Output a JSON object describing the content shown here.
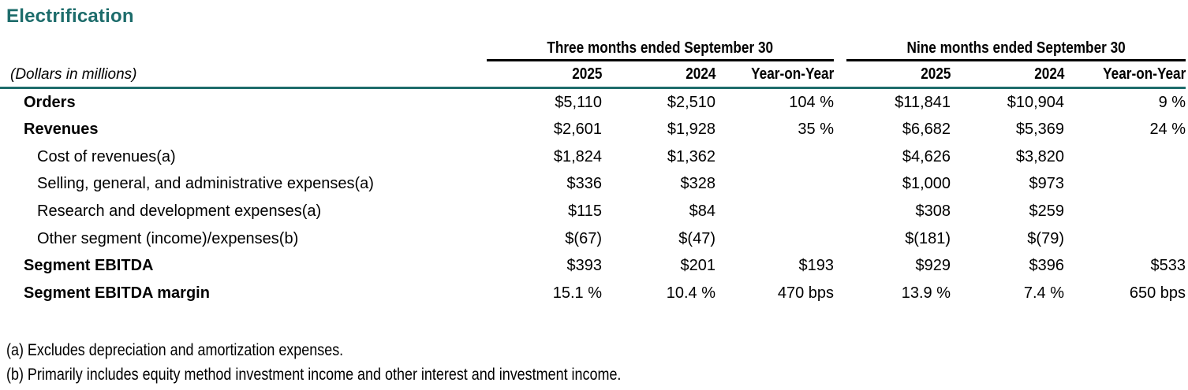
{
  "title": "Electrification",
  "colors": {
    "accent_teal": "#1D6C6B",
    "text": "#000000",
    "rule_black": "#000000"
  },
  "table": {
    "dollars_note": "(Dollars in millions)",
    "groups": [
      {
        "label": "Three months ended September 30"
      },
      {
        "label": "Nine months ended September 30"
      }
    ],
    "columns": [
      "2025",
      "2024",
      "Year-on-Year"
    ],
    "rows": [
      {
        "label": "Orders",
        "style": "bold",
        "cells": [
          "$5,110",
          "$2,510",
          "104 %",
          "$11,841",
          "$10,904",
          "9 %"
        ]
      },
      {
        "label": "Revenues",
        "style": "bold",
        "cells": [
          "$2,601",
          "$1,928",
          "35 %",
          "$6,682",
          "$5,369",
          "24 %"
        ]
      },
      {
        "label": "Cost of revenues(a)",
        "style": "indent",
        "cells": [
          "$1,824",
          "$1,362",
          "",
          "$4,626",
          "$3,820",
          ""
        ]
      },
      {
        "label": "Selling, general, and administrative expenses(a)",
        "style": "indent",
        "cells": [
          "$336",
          "$328",
          "",
          "$1,000",
          "$973",
          ""
        ]
      },
      {
        "label": "Research and development expenses(a)",
        "style": "indent",
        "cells": [
          "$115",
          "$84",
          "",
          "$308",
          "$259",
          ""
        ]
      },
      {
        "label": "Other segment (income)/expenses(b)",
        "style": "indent",
        "cells": [
          "$(67)",
          "$(47)",
          "",
          "$(181)",
          "$(79)",
          ""
        ]
      },
      {
        "label": "Segment EBITDA",
        "style": "bold",
        "cells": [
          "$393",
          "$201",
          "$193",
          "$929",
          "$396",
          "$533"
        ]
      },
      {
        "label": "Segment EBITDA margin",
        "style": "bold",
        "cells": [
          "15.1 %",
          "10.4 %",
          "470 bps",
          "13.9 %",
          "7.4 %",
          "650 bps"
        ]
      }
    ]
  },
  "footnotes": [
    "(a) Excludes depreciation and amortization expenses.",
    "(b) Primarily includes equity method investment income and other interest and investment income."
  ]
}
